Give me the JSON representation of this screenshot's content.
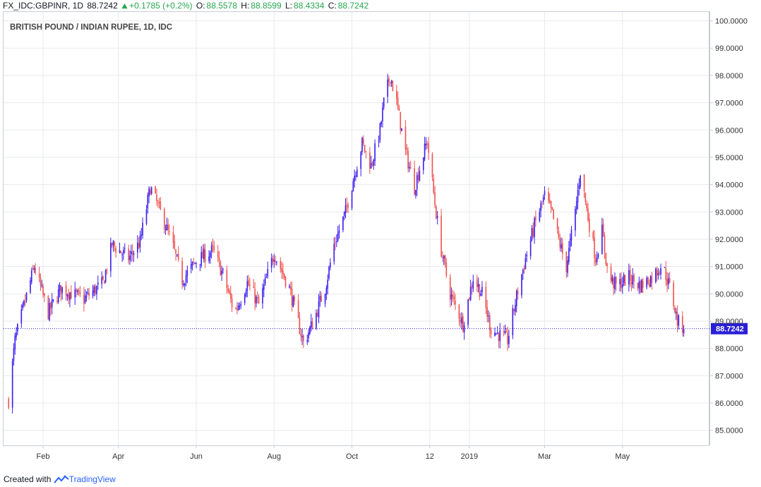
{
  "header": {
    "symbol": "FX_IDC:GBPINR, 1D",
    "price": "88.7242",
    "change_icon": "triangle-up-icon",
    "change": "+0.1785 (+0.2%)",
    "open_label": "O:",
    "open": "88.5578",
    "high_label": "H:",
    "high": "88.8599",
    "low_label": "L:",
    "low": "88.4334",
    "close_label": "C:",
    "close": "88.7242"
  },
  "footer": {
    "created_with": "Created with",
    "brand": "TradingView",
    "logo_icon": "tradingview-logo-icon"
  },
  "colors": {
    "up": "#3a1ef0",
    "down": "#ef5350",
    "grid": "#e8eaee",
    "price_line": "#2a1fd6",
    "price_label_bg": "#2a1fd6",
    "header_green": "#26a650"
  },
  "chart_data": {
    "type": "candlestick",
    "title": "BRITISH POUND / INDIAN RUPEE, 1D, IDC",
    "x_tick_labels": [
      "Feb",
      "Apr",
      "Jun",
      "Aug",
      "Oct",
      "12",
      "2019",
      "Mar",
      "May"
    ],
    "y_tick_labels": [
      "85.0000",
      "86.0000",
      "87.0000",
      "88.0000",
      "89.0000",
      "90.0000",
      "91.0000",
      "92.0000",
      "93.0000",
      "94.0000",
      "95.0000",
      "96.0000",
      "97.0000",
      "98.0000",
      "99.0000",
      "100.0000"
    ],
    "ylim": [
      84.45,
      100.35
    ],
    "last_price": 88.7242,
    "last_price_label": "88.7242",
    "grid": true,
    "anchors": [
      {
        "date": "2018-01-05",
        "close": 86.1
      },
      {
        "date": "2018-01-10",
        "close": 88.3
      },
      {
        "date": "2018-01-15",
        "close": 89.2
      },
      {
        "date": "2018-01-25",
        "close": 91.0
      },
      {
        "date": "2018-02-05",
        "close": 89.3
      },
      {
        "date": "2018-02-15",
        "close": 90.2
      },
      {
        "date": "2018-03-05",
        "close": 89.8
      },
      {
        "date": "2018-03-20",
        "close": 90.4
      },
      {
        "date": "2018-03-27",
        "close": 91.8
      },
      {
        "date": "2018-04-09",
        "close": 91.3
      },
      {
        "date": "2018-04-18",
        "close": 91.9
      },
      {
        "date": "2018-04-26",
        "close": 93.9
      },
      {
        "date": "2018-05-03",
        "close": 93.1
      },
      {
        "date": "2018-05-08",
        "close": 92.5
      },
      {
        "date": "2018-05-14",
        "close": 91.7
      },
      {
        "date": "2018-05-21",
        "close": 90.5
      },
      {
        "date": "2018-06-01",
        "close": 91.2
      },
      {
        "date": "2018-06-14",
        "close": 91.6
      },
      {
        "date": "2018-06-22",
        "close": 90.7
      },
      {
        "date": "2018-07-01",
        "close": 89.3
      },
      {
        "date": "2018-07-11",
        "close": 90.4
      },
      {
        "date": "2018-07-20",
        "close": 89.6
      },
      {
        "date": "2018-08-01",
        "close": 91.5
      },
      {
        "date": "2018-08-13",
        "close": 90.2
      },
      {
        "date": "2018-08-24",
        "close": 88.2
      },
      {
        "date": "2018-09-01",
        "close": 89.0
      },
      {
        "date": "2018-09-06",
        "close": 89.7
      },
      {
        "date": "2018-09-10",
        "close": 90.2
      },
      {
        "date": "2018-09-17",
        "close": 91.8
      },
      {
        "date": "2018-09-26",
        "close": 93.0
      },
      {
        "date": "2018-10-02",
        "close": 94.2
      },
      {
        "date": "2018-10-09",
        "close": 95.5
      },
      {
        "date": "2018-10-16",
        "close": 94.7
      },
      {
        "date": "2018-10-23",
        "close": 96.0
      },
      {
        "date": "2018-10-26",
        "close": 97.0
      },
      {
        "date": "2018-10-31",
        "close": 98.0
      },
      {
        "date": "2018-11-05",
        "close": 97.0
      },
      {
        "date": "2018-11-12",
        "close": 95.2
      },
      {
        "date": "2018-11-19",
        "close": 93.9
      },
      {
        "date": "2018-11-23",
        "close": 94.6
      },
      {
        "date": "2018-11-29",
        "close": 95.6
      },
      {
        "date": "2018-12-05",
        "close": 93.3
      },
      {
        "date": "2018-12-10",
        "close": 91.6
      },
      {
        "date": "2018-12-17",
        "close": 90.0
      },
      {
        "date": "2018-12-27",
        "close": 88.9
      },
      {
        "date": "2019-01-04",
        "close": 90.6
      },
      {
        "date": "2019-01-11",
        "close": 90.0
      },
      {
        "date": "2019-01-18",
        "close": 88.7
      },
      {
        "date": "2019-01-31",
        "close": 88.3
      },
      {
        "date": "2019-02-07",
        "close": 89.9
      },
      {
        "date": "2019-02-14",
        "close": 91.3
      },
      {
        "date": "2019-02-21",
        "close": 92.5
      },
      {
        "date": "2019-03-01",
        "close": 93.6
      },
      {
        "date": "2019-03-07",
        "close": 92.9
      },
      {
        "date": "2019-03-13",
        "close": 91.8
      },
      {
        "date": "2019-03-18",
        "close": 91.0
      },
      {
        "date": "2019-03-25",
        "close": 93.0
      },
      {
        "date": "2019-03-29",
        "close": 94.5
      },
      {
        "date": "2019-04-04",
        "close": 92.8
      },
      {
        "date": "2019-04-10",
        "close": 91.3
      },
      {
        "date": "2019-04-15",
        "close": 92.3
      },
      {
        "date": "2019-04-20",
        "close": 90.6
      },
      {
        "date": "2019-04-26",
        "close": 90.3
      },
      {
        "date": "2019-05-06",
        "close": 90.6
      },
      {
        "date": "2019-05-15",
        "close": 90.3
      },
      {
        "date": "2019-05-24",
        "close": 90.6
      },
      {
        "date": "2019-06-01",
        "close": 91.1
      },
      {
        "date": "2019-06-08",
        "close": 90.1
      },
      {
        "date": "2019-06-13",
        "close": 89.0
      },
      {
        "date": "2019-06-18",
        "close": 88.72
      }
    ]
  }
}
